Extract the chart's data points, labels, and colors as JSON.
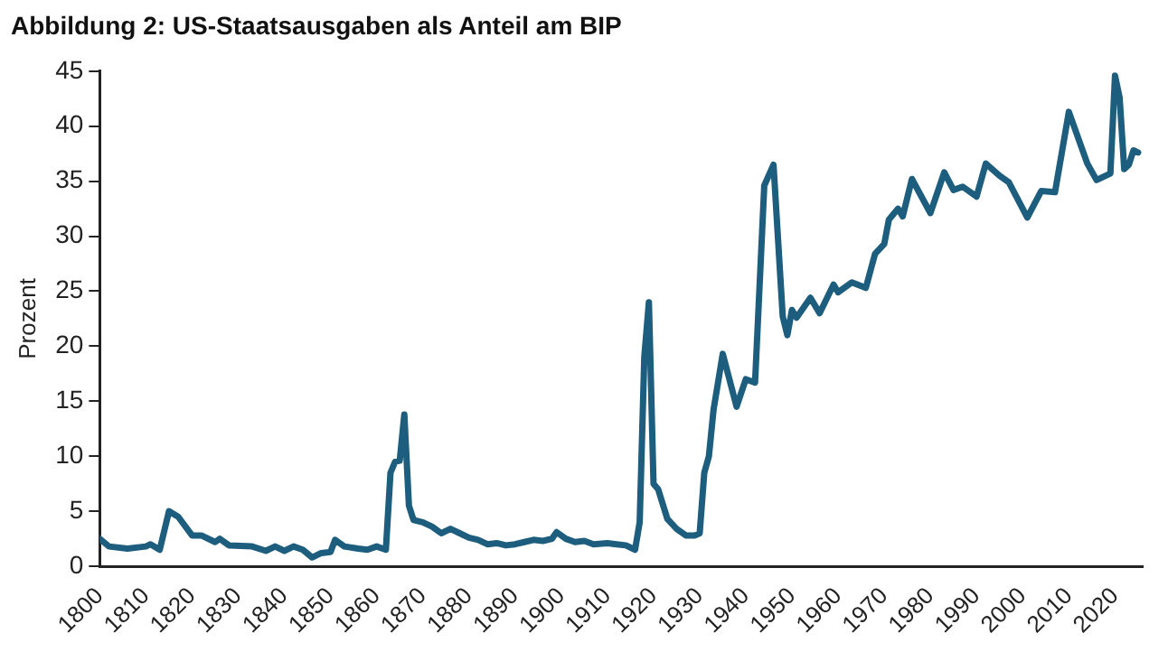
{
  "chart_data": {
    "type": "line",
    "title": "Abbildung 2: US-Staatsausgaben als Anteil am BIP",
    "ylabel": "Prozent",
    "x": [
      1800,
      1802,
      1806,
      1810,
      1811,
      1813,
      1815,
      1817,
      1820,
      1822,
      1825,
      1826,
      1828,
      1833,
      1836,
      1838,
      1840,
      1842,
      1844,
      1846,
      1848,
      1850,
      1851,
      1853,
      1856,
      1858,
      1860,
      1862,
      1863,
      1864,
      1865,
      1866,
      1867,
      1868,
      1870,
      1872,
      1874,
      1876,
      1878,
      1880,
      1882,
      1884,
      1886,
      1888,
      1890,
      1892,
      1894,
      1896,
      1898,
      1899,
      1901,
      1903,
      1905,
      1907,
      1910,
      1912,
      1914,
      1916,
      1917,
      1918,
      1919,
      1920,
      1921,
      1923,
      1925,
      1927,
      1929,
      1930,
      1931,
      1932,
      1933,
      1935,
      1938,
      1940,
      1942,
      1944,
      1946,
      1948,
      1949,
      1950,
      1951,
      1954,
      1956,
      1959,
      1960,
      1963,
      1966,
      1968,
      1970,
      1971,
      1973,
      1974,
      1976,
      1980,
      1983,
      1985,
      1987,
      1990,
      1992,
      1995,
      1997,
      2001,
      2004,
      2007,
      2010,
      2014,
      2016,
      2019,
      2020,
      2021,
      2022,
      2023,
      2024,
      2025
    ],
    "series": [
      {
        "color": "#1d5d7e",
        "values": [
          2.5,
          1.8,
          1.6,
          1.8,
          2.0,
          1.5,
          5.0,
          4.5,
          2.8,
          2.8,
          2.2,
          2.5,
          1.9,
          1.8,
          1.4,
          1.8,
          1.4,
          1.8,
          1.5,
          0.8,
          1.2,
          1.3,
          2.4,
          1.8,
          1.6,
          1.5,
          1.8,
          1.5,
          8.5,
          9.5,
          9.6,
          13.8,
          5.5,
          4.2,
          4.0,
          3.6,
          3.0,
          3.4,
          3.0,
          2.6,
          2.4,
          2.0,
          2.1,
          1.9,
          2.0,
          2.2,
          2.4,
          2.3,
          2.5,
          3.1,
          2.5,
          2.2,
          2.3,
          2.0,
          2.1,
          2.0,
          1.9,
          1.5,
          4.0,
          19.0,
          24.0,
          7.5,
          7.0,
          4.3,
          3.4,
          2.8,
          2.8,
          3.0,
          8.5,
          10.0,
          14.2,
          19.3,
          14.5,
          17.0,
          16.7,
          34.6,
          36.5,
          22.7,
          21.0,
          23.3,
          22.6,
          24.4,
          23.0,
          25.6,
          24.9,
          25.8,
          25.3,
          28.4,
          29.3,
          31.5,
          32.5,
          31.8,
          35.2,
          32.1,
          35.8,
          34.2,
          34.5,
          33.6,
          36.6,
          35.5,
          34.9,
          31.7,
          34.1,
          34.0,
          41.3,
          36.6,
          35.1,
          35.7,
          44.6,
          42.6,
          36.1,
          36.5,
          37.8,
          37.6
        ]
      }
    ],
    "xlim": [
      1800,
      2026
    ],
    "xticks": [
      1800,
      1810,
      1820,
      1830,
      1840,
      1850,
      1860,
      1870,
      1880,
      1890,
      1900,
      1910,
      1920,
      1930,
      1940,
      1950,
      1960,
      1970,
      1980,
      1990,
      2000,
      2010,
      2020
    ],
    "ylim": [
      0,
      45
    ],
    "yticks": [
      0,
      5,
      10,
      15,
      20,
      25,
      30,
      35,
      40,
      45
    ],
    "grid": false,
    "legend": false,
    "marker": "none",
    "line_style": "solid"
  }
}
